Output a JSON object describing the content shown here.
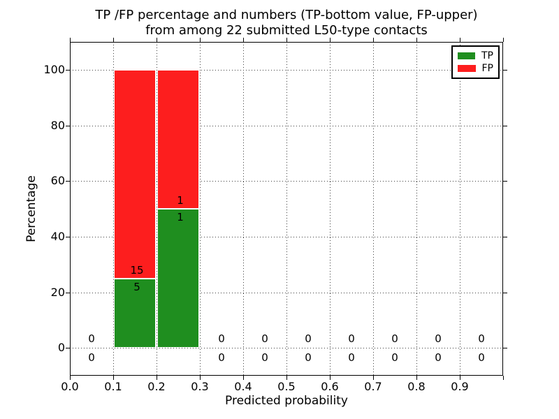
{
  "chart_data": {
    "type": "bar",
    "stacked": true,
    "title_line1": "TP /FP percentage and numbers (TP-bottom value, FP-upper)",
    "title_line2": "from among 22 submitted L50-type contacts",
    "xlabel": "Predicted probability",
    "ylabel": "Percentage",
    "total_contacts": 22,
    "xlim": [
      0.0,
      1.0
    ],
    "ylim": [
      -10,
      110
    ],
    "x_tick_values": [
      0.0,
      0.1,
      0.2,
      0.3,
      0.4,
      0.5,
      0.6,
      0.7,
      0.8,
      0.9
    ],
    "x_tick_labels": [
      "0.0",
      "0.1",
      "0.2",
      "0.3",
      "0.4",
      "0.5",
      "0.6",
      "0.7",
      "0.8",
      "0.9"
    ],
    "y_tick_values": [
      0,
      20,
      40,
      60,
      80,
      100
    ],
    "y_tick_labels": [
      "0",
      "20",
      "40",
      "60",
      "80",
      "100"
    ],
    "grid_style": "dotted",
    "legend_position": "upper-right",
    "legend": [
      {
        "label": "TP",
        "color": "#1f8e1f"
      },
      {
        "label": "FP",
        "color": "#fd1e1e"
      }
    ],
    "bin_width": 0.1,
    "bins": [
      {
        "x0": 0.0,
        "x1": 0.1,
        "tp": 0,
        "fp": 0,
        "tp_pct": 0,
        "fp_pct": 0
      },
      {
        "x0": 0.1,
        "x1": 0.2,
        "tp": 5,
        "fp": 15,
        "tp_pct": 25,
        "fp_pct": 75
      },
      {
        "x0": 0.2,
        "x1": 0.3,
        "tp": 1,
        "fp": 1,
        "tp_pct": 50,
        "fp_pct": 50
      },
      {
        "x0": 0.3,
        "x1": 0.4,
        "tp": 0,
        "fp": 0,
        "tp_pct": 0,
        "fp_pct": 0
      },
      {
        "x0": 0.4,
        "x1": 0.5,
        "tp": 0,
        "fp": 0,
        "tp_pct": 0,
        "fp_pct": 0
      },
      {
        "x0": 0.5,
        "x1": 0.6,
        "tp": 0,
        "fp": 0,
        "tp_pct": 0,
        "fp_pct": 0
      },
      {
        "x0": 0.6,
        "x1": 0.7,
        "tp": 0,
        "fp": 0,
        "tp_pct": 0,
        "fp_pct": 0
      },
      {
        "x0": 0.7,
        "x1": 0.8,
        "tp": 0,
        "fp": 0,
        "tp_pct": 0,
        "fp_pct": 0
      },
      {
        "x0": 0.8,
        "x1": 0.9,
        "tp": 0,
        "fp": 0,
        "tp_pct": 0,
        "fp_pct": 0
      },
      {
        "x0": 0.9,
        "x1": 1.0,
        "tp": 0,
        "fp": 0,
        "tp_pct": 0,
        "fp_pct": 0
      }
    ]
  }
}
